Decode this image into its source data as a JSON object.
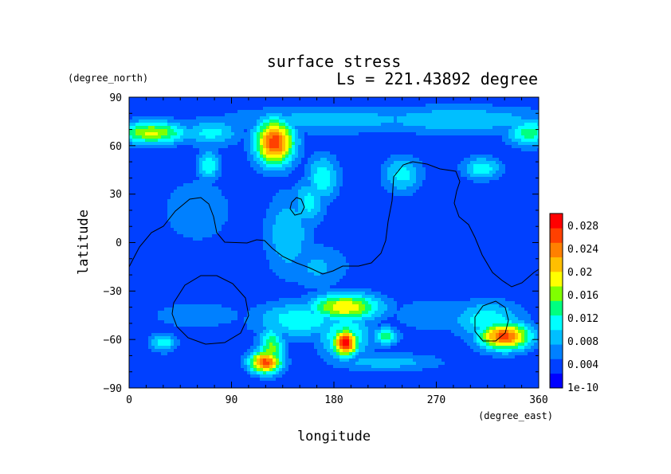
{
  "chart_data": {
    "type": "heatmap",
    "title": "surface stress",
    "subtitle": "Ls = 221.43892 degree",
    "xlabel": "longitude",
    "ylabel": "latitude",
    "xunit": "(degree_east)",
    "yunit": "(degree_north)",
    "xlim": [
      0,
      360
    ],
    "ylim": [
      -90,
      90
    ],
    "xticks": [
      "0",
      "90",
      "180",
      "270",
      "360"
    ],
    "yticks": [
      "90",
      "60",
      "30",
      "0",
      "−30",
      "−60",
      "−90"
    ],
    "colorbar": {
      "labels": [
        "0.028",
        "0.024",
        "0.02",
        "0.016",
        "0.012",
        "0.008",
        "0.004",
        "1e-10"
      ],
      "label_values": [
        0.028,
        0.024,
        0.02,
        0.016,
        0.012,
        0.008,
        0.004,
        0.0
      ],
      "min": 0,
      "max": 0.03,
      "colors": [
        "#0000ff",
        "#0040ff",
        "#0080ff",
        "#00bfff",
        "#00ffff",
        "#00ff80",
        "#80ff00",
        "#ffff00",
        "#ffbf00",
        "#ff8000",
        "#ff4000",
        "#ff0000"
      ]
    },
    "background_value": 0.003,
    "features": [
      {
        "lon": 128,
        "lat": 62,
        "value": 0.027,
        "slon": 12,
        "slat": 10
      },
      {
        "lon": 20,
        "lat": 68,
        "value": 0.018,
        "slon": 22,
        "slat": 5
      },
      {
        "lon": 352,
        "lat": 68,
        "value": 0.014,
        "slon": 14,
        "slat": 6
      },
      {
        "lon": 72,
        "lat": 68,
        "value": 0.011,
        "slon": 18,
        "slat": 6
      },
      {
        "lon": 180,
        "lat": 76,
        "value": 0.009,
        "slon": 70,
        "slat": 6
      },
      {
        "lon": 290,
        "lat": 76,
        "value": 0.01,
        "slon": 60,
        "slat": 6
      },
      {
        "lon": 170,
        "lat": 40,
        "value": 0.012,
        "slon": 10,
        "slat": 10
      },
      {
        "lon": 158,
        "lat": 25,
        "value": 0.011,
        "slon": 10,
        "slat": 10
      },
      {
        "lon": 240,
        "lat": 42,
        "value": 0.011,
        "slon": 12,
        "slat": 8
      },
      {
        "lon": 310,
        "lat": 46,
        "value": 0.012,
        "slon": 12,
        "slat": 5
      },
      {
        "lon": 70,
        "lat": 48,
        "value": 0.012,
        "slon": 7,
        "slat": 7
      },
      {
        "lon": 140,
        "lat": 5,
        "value": 0.01,
        "slon": 14,
        "slat": 18
      },
      {
        "lon": 165,
        "lat": -15,
        "value": 0.008,
        "slon": 20,
        "slat": 10
      },
      {
        "lon": 190,
        "lat": -40,
        "value": 0.02,
        "slon": 22,
        "slat": 6
      },
      {
        "lon": 150,
        "lat": -48,
        "value": 0.012,
        "slon": 28,
        "slat": 8
      },
      {
        "lon": 190,
        "lat": -62,
        "value": 0.029,
        "slon": 8,
        "slat": 6
      },
      {
        "lon": 190,
        "lat": -58,
        "value": 0.014,
        "slon": 16,
        "slat": 10
      },
      {
        "lon": 125,
        "lat": -66,
        "value": 0.016,
        "slon": 8,
        "slat": 10
      },
      {
        "lon": 120,
        "lat": -74,
        "value": 0.026,
        "slon": 10,
        "slat": 5
      },
      {
        "lon": 225,
        "lat": -74,
        "value": 0.009,
        "slon": 35,
        "slat": 4
      },
      {
        "lon": 30,
        "lat": -62,
        "value": 0.012,
        "slon": 8,
        "slat": 4
      },
      {
        "lon": 225,
        "lat": -58,
        "value": 0.014,
        "slon": 8,
        "slat": 4
      },
      {
        "lon": 330,
        "lat": -58,
        "value": 0.026,
        "slon": 16,
        "slat": 6
      },
      {
        "lon": 315,
        "lat": -48,
        "value": 0.012,
        "slon": 22,
        "slat": 8
      },
      {
        "lon": 270,
        "lat": -45,
        "value": 0.007,
        "slon": 30,
        "slat": 8
      },
      {
        "lon": 60,
        "lat": -45,
        "value": 0.006,
        "slon": 40,
        "slat": 8
      },
      {
        "lon": 60,
        "lat": 20,
        "value": 0.006,
        "slon": 30,
        "slat": 20
      },
      {
        "lon": 330,
        "lat": 10,
        "value": 0.005,
        "slon": 30,
        "slat": 25
      }
    ]
  }
}
